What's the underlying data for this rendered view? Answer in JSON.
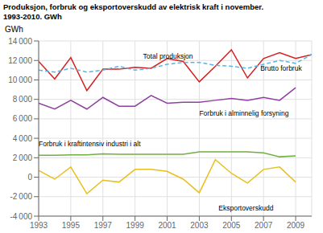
{
  "chart_data": {
    "type": "line",
    "title": "Produksjon, forbruk og eksportoverskudd av elektrisk kraft i november.",
    "subtitle": "1993-2010. GWh",
    "y_label": "GWh",
    "x": [
      1993,
      1994,
      1995,
      1996,
      1997,
      1998,
      1999,
      2000,
      2001,
      2002,
      2003,
      2004,
      2005,
      2006,
      2007,
      2008,
      2009,
      2010
    ],
    "series": [
      {
        "color": "#d42020",
        "line_style": "solid",
        "values": [
          11900,
          10100,
          12300,
          8900,
          11100,
          11100,
          11300,
          11200,
          12200,
          11900,
          9800,
          11400,
          13100,
          10200,
          12200,
          12800,
          12200,
          12600
        ]
      },
      {
        "color": "#5ab4e5",
        "line_style": "dashed",
        "values": [
          11000,
          10800,
          11200,
          10800,
          11000,
          11400,
          11000,
          11200,
          11600,
          11800,
          11800,
          11500,
          11400,
          11200,
          11600,
          12000,
          11700,
          12600
        ]
      },
      {
        "color": "#9040a0",
        "line_style": "solid",
        "values": [
          7600,
          7000,
          7900,
          7000,
          8200,
          7300,
          7300,
          8400,
          7600,
          7700,
          7700,
          7900,
          8100,
          7900,
          8200,
          7900,
          9200,
          null
        ]
      },
      {
        "color": "#70b040",
        "line_style": "solid",
        "values": [
          2250,
          2250,
          2300,
          2300,
          2400,
          2350,
          2350,
          2350,
          2350,
          2350,
          2600,
          2600,
          2600,
          2600,
          2500,
          2100,
          2200,
          null
        ]
      },
      {
        "color": "#e8c020",
        "line_style": "solid",
        "values": [
          700,
          -200,
          1050,
          -1700,
          -300,
          -500,
          800,
          800,
          600,
          -200,
          -1600,
          1800,
          400,
          -600,
          800,
          1050,
          -500,
          null
        ]
      }
    ],
    "annotations": [
      {
        "text": "Total produksjon",
        "x": 1999.5,
        "y": 12050
      },
      {
        "text": "Brutto forbruk",
        "x": 2006.8,
        "y": 10800
      },
      {
        "text": "Forbruk i alminnelig forsyning",
        "x": 2003.0,
        "y": 7100
      },
      {
        "text": "Forbruk i kraftintensiv industri i alt",
        "x": 1993.0,
        "y": 3050
      },
      {
        "text": "Eksportoverskudd",
        "x": 2004.2,
        "y": -2700
      }
    ],
    "xlim": [
      1993,
      2010
    ],
    "xticks": [
      1993,
      1995,
      1997,
      1999,
      2001,
      2003,
      2005,
      2007,
      2009
    ],
    "ylim": [
      -4000,
      14000
    ],
    "yticks": [
      {
        "value": -4000,
        "label": "-4 000"
      },
      {
        "value": -2000,
        "label": "-2 000"
      },
      0,
      {
        "value": 2000,
        "label": "2 000"
      },
      {
        "value": 4000,
        "label": "4 000"
      },
      {
        "value": 6000,
        "label": "6 000"
      },
      {
        "value": 8000,
        "label": "8 000"
      },
      {
        "value": 10000,
        "label": "10 000"
      },
      {
        "value": 12000,
        "label": "12 000"
      },
      {
        "value": 14000,
        "label": "14 000"
      }
    ],
    "grid": true
  }
}
